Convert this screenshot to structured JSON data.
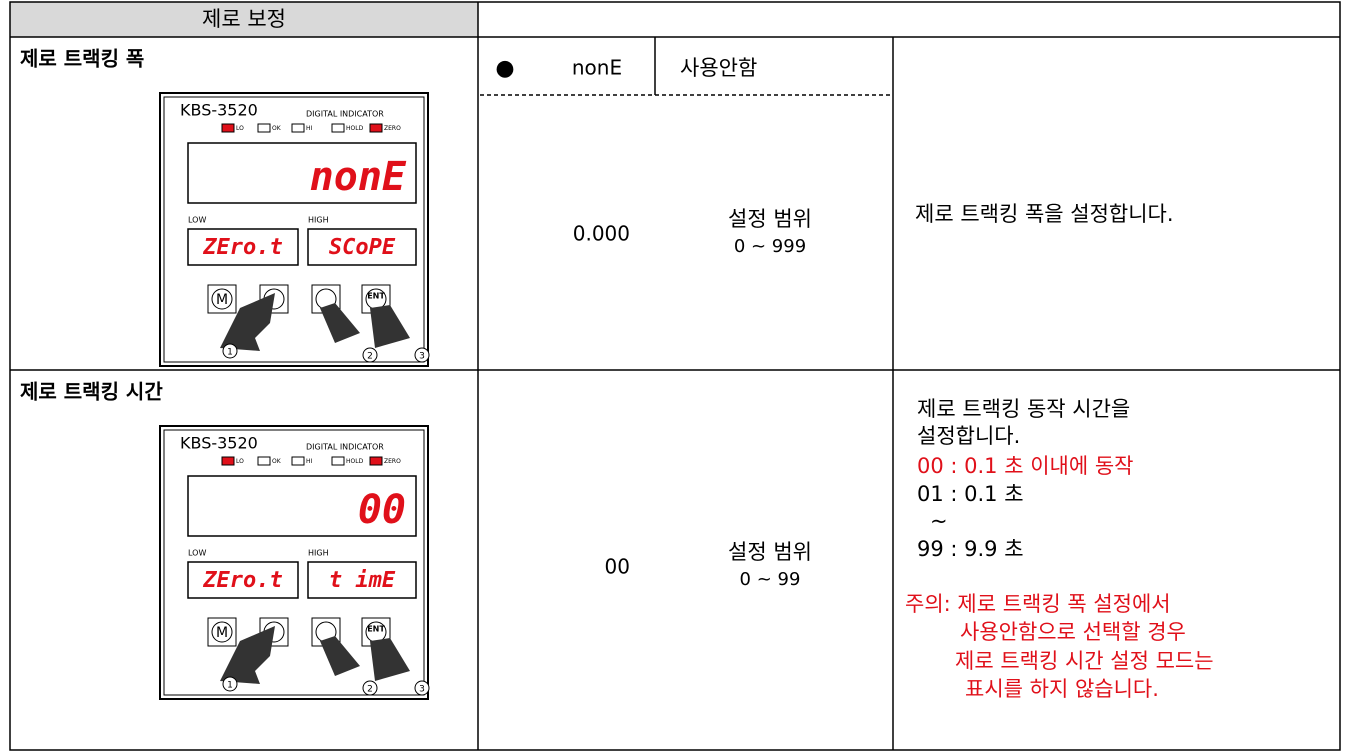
{
  "header": {
    "title": "제로 보정"
  },
  "rows": [
    {
      "title": "제로 트랙킹 폭",
      "device": {
        "model": "KBS-3520",
        "subtitle": "DIGITAL INDICATOR",
        "lamps": [
          "LO",
          "OK",
          "HI",
          "HOLD",
          "ZERO"
        ],
        "display": "nonE",
        "low_label": "LOW",
        "high_label": "HIGH",
        "low_display": "ZEro.t",
        "high_display": "SCoPE",
        "buttons": [
          "M",
          "ENT"
        ],
        "steps": [
          "1",
          "2",
          "3"
        ]
      },
      "option": {
        "bullet": "●",
        "code": "nonE",
        "label": "사용안함"
      },
      "value": "0.000",
      "range_label": "설정 범위",
      "range": "0 ~ 999",
      "description": [
        "제로 트랙킹 폭을 설정합니다."
      ]
    },
    {
      "title": "제로 트랙킹 시간",
      "device": {
        "model": "KBS-3520",
        "subtitle": "DIGITAL INDICATOR",
        "lamps": [
          "LO",
          "OK",
          "HI",
          "HOLD",
          "ZERO"
        ],
        "display": "00",
        "low_label": "LOW",
        "high_label": "HIGH",
        "low_display": "ZEro.t",
        "high_display": "t imE",
        "buttons": [
          "M",
          "ENT"
        ],
        "steps": [
          "1",
          "2",
          "3"
        ]
      },
      "value": "00",
      "range_label": "설정 범위",
      "range": "0 ~ 99",
      "description": [
        "제로 트랙킹 동작 시간을",
        "설정합니다.",
        "00 : 0.1 초 이내에 동작",
        "01 : 0.1 초",
        "~",
        "99 : 9.9 초",
        "주의: 제로 트랙킹 폭 설정에서",
        "사용안함으로 선택할 경우",
        "제로 트랙킹 시간 설정 모드는",
        "표시를 하지 않습니다."
      ]
    }
  ]
}
